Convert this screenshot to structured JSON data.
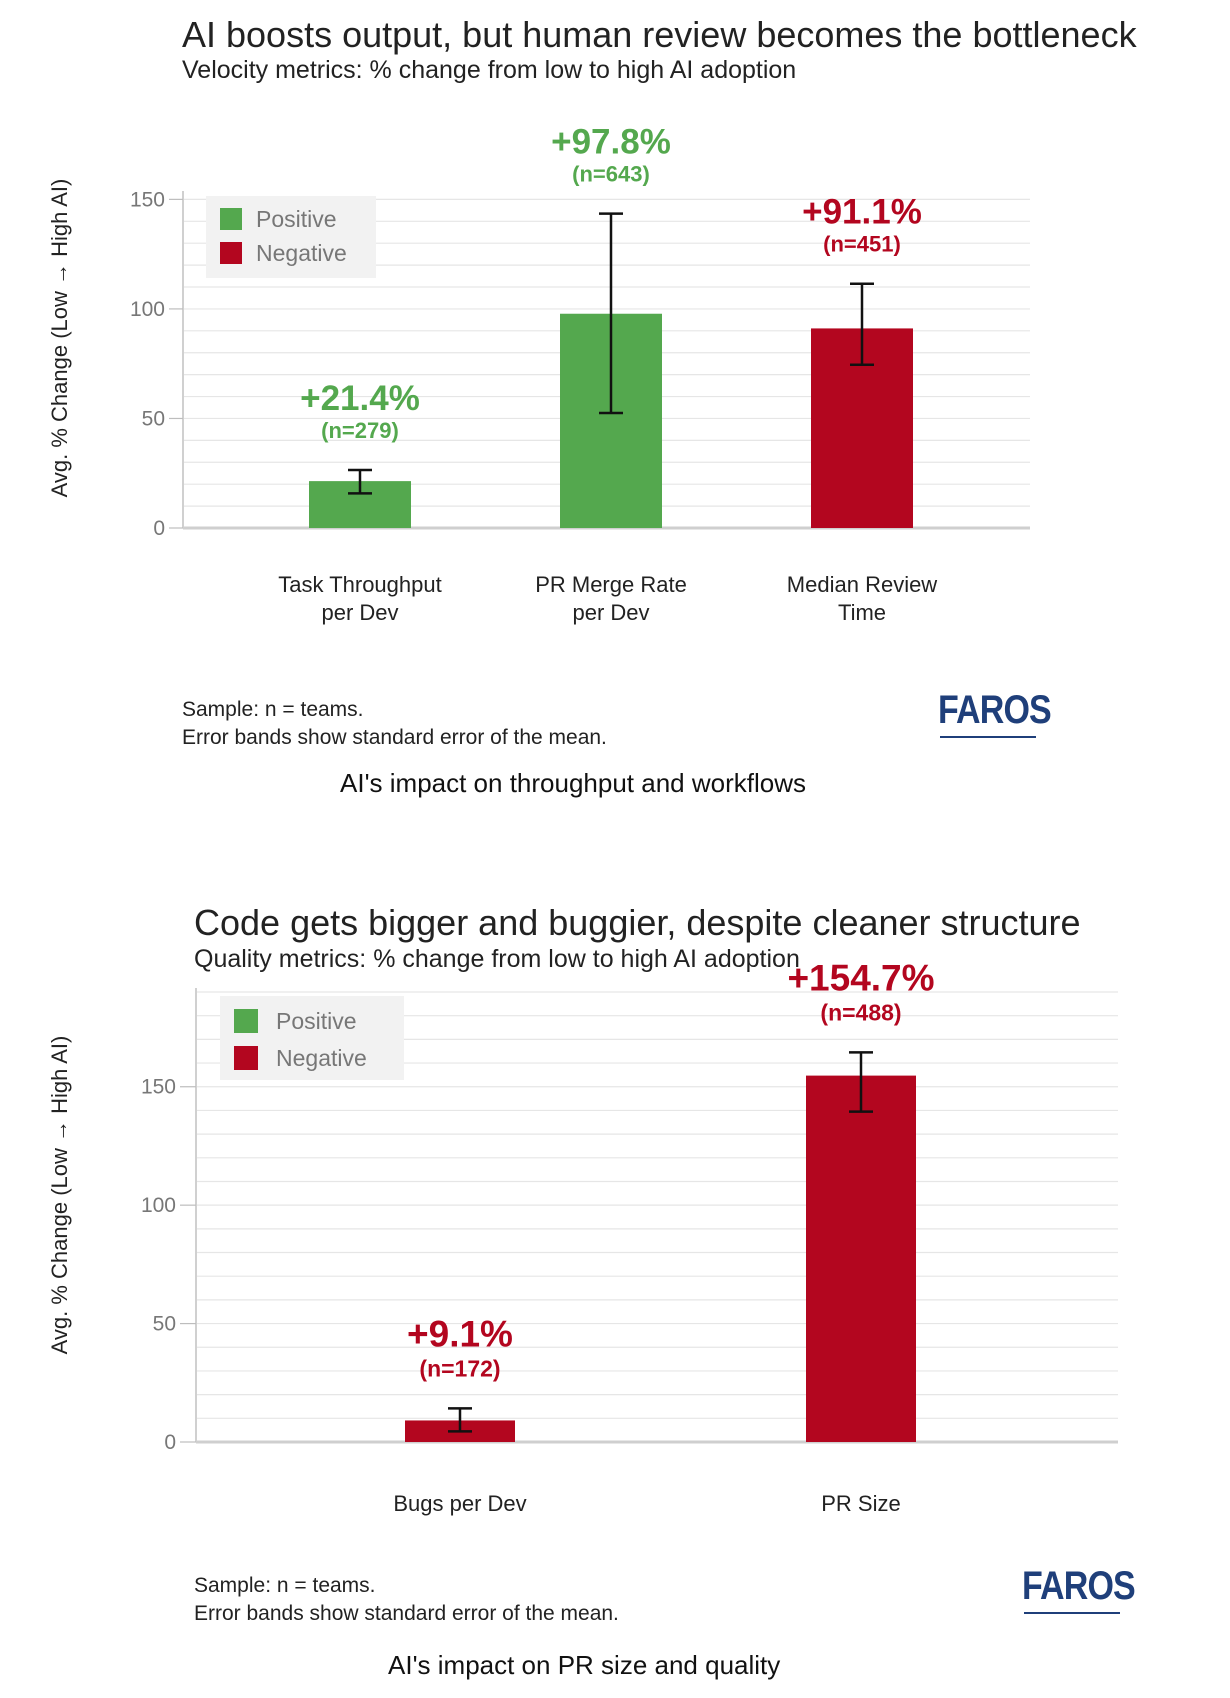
{
  "colors": {
    "positive": "#54a84e",
    "negative": "#b3061f",
    "grid": "#e6e6e6",
    "legend_bg": "#f2f2f2"
  },
  "charts": [
    {
      "title": "AI boosts output, but human review becomes the bottleneck",
      "subtitle": "Velocity metrics: % change from low to high AI adoption",
      "note_line1": "Sample: n = teams.",
      "note_line2": "Error bands show standard error of the mean.",
      "caption": "AI's impact on throughput and workflows",
      "logo": "FAROS"
    },
    {
      "title": "Code gets bigger and buggier, despite cleaner structure",
      "subtitle": "Quality metrics: % change from low to high AI adoption",
      "note_line1": "Sample: n = teams.",
      "note_line2": "Error bands show standard error of the mean.",
      "caption": "AI's impact on PR size and quality",
      "logo": "FAROS"
    }
  ],
  "chart_data": [
    {
      "type": "bar",
      "title": "AI boosts output, but human review becomes the bottleneck",
      "subtitle": "Velocity metrics: % change from low to high AI adoption",
      "ylabel": "Avg. % Change (Low → High AI)",
      "xlabel": "",
      "ylim": [
        0,
        152
      ],
      "yticks": [
        0,
        50,
        100,
        150
      ],
      "grid": true,
      "legend": {
        "placement": "top-left",
        "entries": [
          "Positive",
          "Negative"
        ]
      },
      "categories": [
        [
          "Task Throughput",
          "per Dev"
        ],
        [
          "PR Merge Rate",
          "per Dev"
        ],
        [
          "Median Review",
          "Time"
        ]
      ],
      "values": [
        21.4,
        97.8,
        91.1
      ],
      "sentiment": [
        "Positive",
        "Positive",
        "Negative"
      ],
      "error_low": [
        15.8,
        52.5,
        74.5
      ],
      "error_high": [
        26.5,
        143.5,
        111.5
      ],
      "value_labels": [
        "+21.4%",
        "+97.8%",
        "+91.1%"
      ],
      "n_labels": [
        "(n=279)",
        "(n=643)",
        "(n=451)"
      ]
    },
    {
      "type": "bar",
      "title": "Code gets bigger and buggier, despite cleaner structure",
      "subtitle": "Quality metrics: % change from low to high AI adoption",
      "ylabel": "Avg. % Change (Low → High AI)",
      "xlabel": "",
      "ylim": [
        0,
        190
      ],
      "yticks": [
        0,
        50,
        100,
        150
      ],
      "grid": true,
      "legend": {
        "placement": "top-left",
        "entries": [
          "Positive",
          "Negative"
        ]
      },
      "categories": [
        [
          "Bugs per Dev"
        ],
        [
          "PR Size"
        ]
      ],
      "values": [
        9.1,
        154.7
      ],
      "sentiment": [
        "Negative",
        "Negative"
      ],
      "error_low": [
        4.5,
        139.5
      ],
      "error_high": [
        14.2,
        164.5
      ],
      "value_labels": [
        "+9.1%",
        "+154.7%"
      ],
      "n_labels": [
        "(n=172)",
        "(n=488)"
      ]
    }
  ]
}
